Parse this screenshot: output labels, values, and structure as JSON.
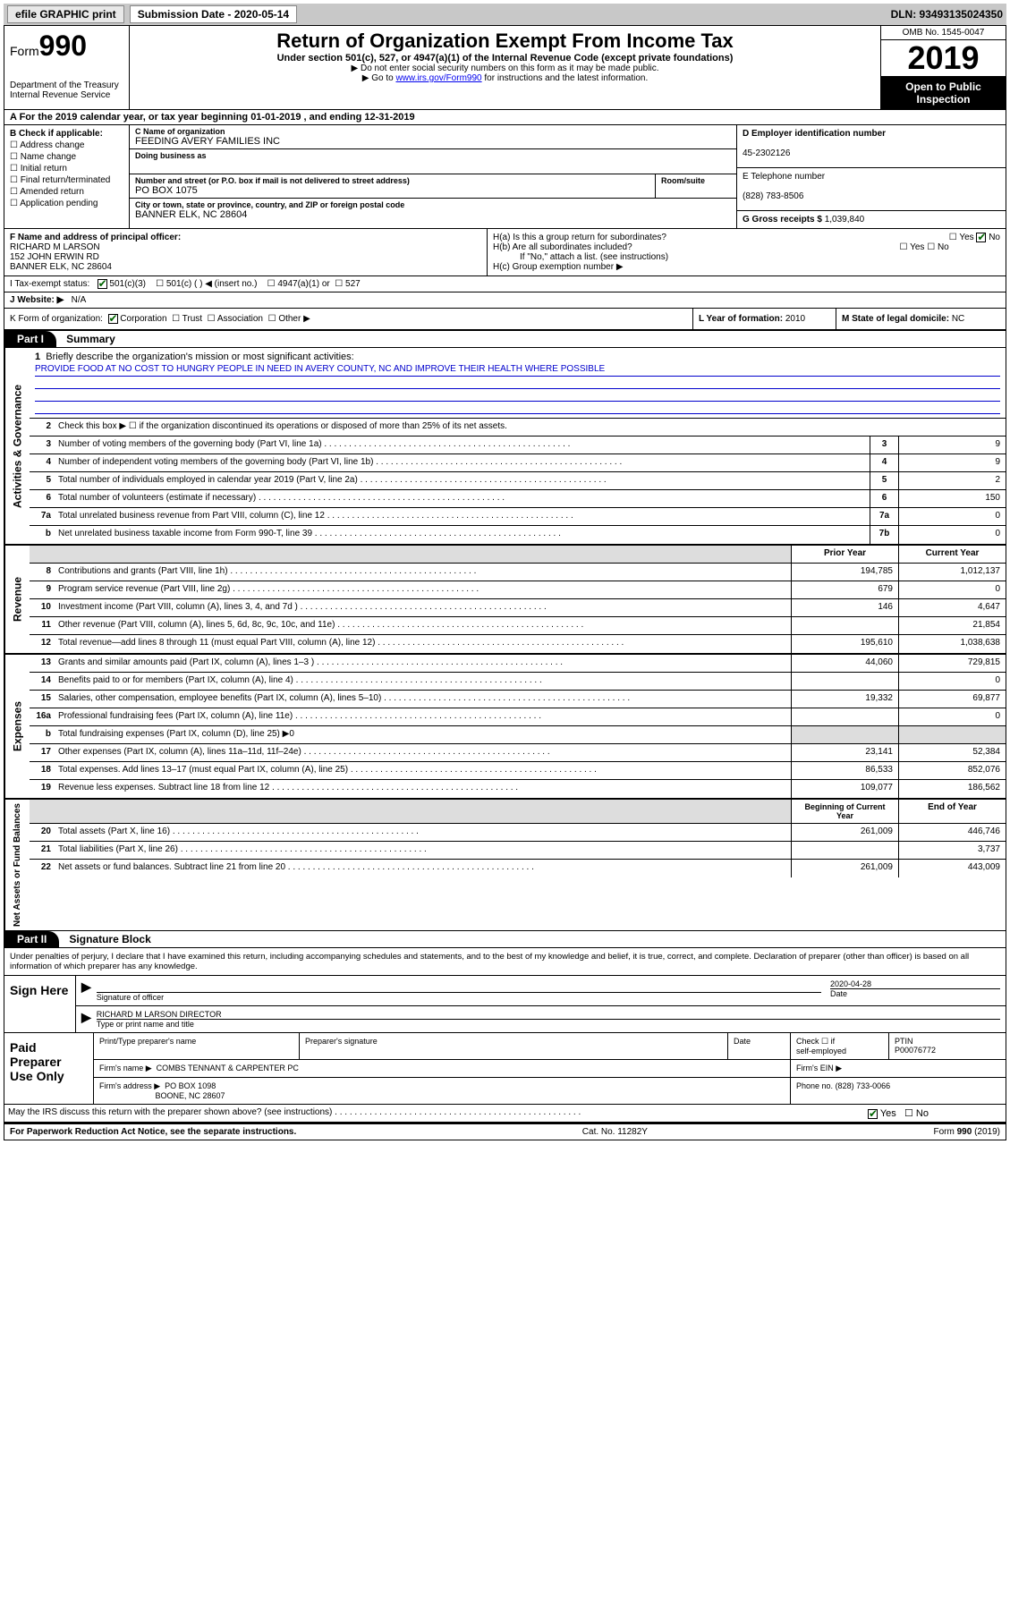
{
  "toolbar": {
    "btn1": "efile GRAPHIC print",
    "sub_label": "Submission Date - 2020-05-14",
    "dln": "DLN: 93493135024350"
  },
  "header": {
    "form_word": "Form",
    "form_num": "990",
    "dept1": "Department of the Treasury",
    "dept2": "Internal Revenue Service",
    "title": "Return of Organization Exempt From Income Tax",
    "sub1": "Under section 501(c), 527, or 4947(a)(1) of the Internal Revenue Code (except private foundations)",
    "sub2": "▶ Do not enter social security numbers on this form as it may be made public.",
    "sub3_pre": "▶ Go to ",
    "sub3_link": "www.irs.gov/Form990",
    "sub3_post": " for instructions and the latest information.",
    "omb": "OMB No. 1545-0047",
    "year": "2019",
    "open1": "Open to Public",
    "open2": "Inspection"
  },
  "rowA": "A For the 2019 calendar year, or tax year beginning 01-01-2019    , and ending 12-31-2019",
  "B": {
    "hdr": "B Check if applicable:",
    "o1": "Address change",
    "o2": "Name change",
    "o3": "Initial return",
    "o4": "Final return/terminated",
    "o5": "Amended return",
    "o6": "Application pending"
  },
  "C": {
    "name_lab": "C Name of organization",
    "name": "FEEDING AVERY FAMILIES INC",
    "dba_lab": "Doing business as",
    "dba": "",
    "street_lab": "Number and street (or P.O. box if mail is not delivered to street address)",
    "street": "PO BOX 1075",
    "room_lab": "Room/suite",
    "city_lab": "City or town, state or province, country, and ZIP or foreign postal code",
    "city": "BANNER ELK, NC  28604"
  },
  "D": {
    "lab": "D Employer identification number",
    "val": "45-2302126"
  },
  "E": {
    "lab": "E Telephone number",
    "val": "(828) 783-8506"
  },
  "G": {
    "lab": "G Gross receipts $",
    "val": "1,039,840"
  },
  "F": {
    "lab": "F  Name and address of principal officer:",
    "v1": "RICHARD M LARSON",
    "v2": "152 JOHN ERWIN RD",
    "v3": "BANNER ELK, NC  28604"
  },
  "H": {
    "a": "H(a)  Is this a group return for subordinates?",
    "b": "H(b)  Are all subordinates included?",
    "b2": "If \"No,\" attach a list. (see instructions)",
    "c": "H(c)  Group exemption number ▶",
    "yes": "Yes",
    "no": "No"
  },
  "I": {
    "lab": "I   Tax-exempt status:",
    "o1": "501(c)(3)",
    "o2": "501(c) (   ) ◀ (insert no.)",
    "o3": "4947(a)(1) or",
    "o4": "527"
  },
  "J": {
    "lab": "J   Website: ▶",
    "val": "N/A"
  },
  "K": {
    "lab": "K Form of organization:",
    "o1": "Corporation",
    "o2": "Trust",
    "o3": "Association",
    "o4": "Other ▶"
  },
  "L": {
    "lab": "L Year of formation:",
    "val": "2010"
  },
  "M": {
    "lab": "M State of legal domicile:",
    "val": "NC"
  },
  "part1": {
    "hdr": "Part I",
    "title": "Summary"
  },
  "tabs": {
    "ag": "Activities & Governance",
    "rev": "Revenue",
    "exp": "Expenses",
    "na": "Net Assets or Fund Balances"
  },
  "q1": {
    "lab": "Briefly describe the organization's mission or most significant activities:",
    "mission": "PROVIDE FOOD AT NO COST TO HUNGRY PEOPLE IN NEED IN AVERY COUNTY, NC AND IMPROVE THEIR HEALTH WHERE POSSIBLE"
  },
  "q2": "Check this box ▶ ☐  if the organization discontinued its operations or disposed of more than 25% of its net assets.",
  "lines_small": [
    {
      "n": "3",
      "t": "Number of voting members of the governing body (Part VI, line 1a)",
      "cn": "3",
      "v": "9"
    },
    {
      "n": "4",
      "t": "Number of independent voting members of the governing body (Part VI, line 1b)",
      "cn": "4",
      "v": "9"
    },
    {
      "n": "5",
      "t": "Total number of individuals employed in calendar year 2019 (Part V, line 2a)",
      "cn": "5",
      "v": "2"
    },
    {
      "n": "6",
      "t": "Total number of volunteers (estimate if necessary)",
      "cn": "6",
      "v": "150"
    },
    {
      "n": "7a",
      "t": "Total unrelated business revenue from Part VIII, column (C), line 12",
      "cn": "7a",
      "v": "0"
    },
    {
      "n": "b",
      "t": "Net unrelated business taxable income from Form 990-T, line 39",
      "cn": "7b",
      "v": "0"
    }
  ],
  "col_hdrs": {
    "prior": "Prior Year",
    "current": "Current Year",
    "beg": "Beginning of Current Year",
    "end": "End of Year"
  },
  "rev_lines": [
    {
      "n": "8",
      "t": "Contributions and grants (Part VIII, line 1h)",
      "p": "194,785",
      "c": "1,012,137"
    },
    {
      "n": "9",
      "t": "Program service revenue (Part VIII, line 2g)",
      "p": "679",
      "c": "0"
    },
    {
      "n": "10",
      "t": "Investment income (Part VIII, column (A), lines 3, 4, and 7d )",
      "p": "146",
      "c": "4,647"
    },
    {
      "n": "11",
      "t": "Other revenue (Part VIII, column (A), lines 5, 6d, 8c, 9c, 10c, and 11e)",
      "p": "",
      "c": "21,854"
    },
    {
      "n": "12",
      "t": "Total revenue—add lines 8 through 11 (must equal Part VIII, column (A), line 12)",
      "p": "195,610",
      "c": "1,038,638"
    }
  ],
  "exp_lines": [
    {
      "n": "13",
      "t": "Grants and similar amounts paid (Part IX, column (A), lines 1–3 )",
      "p": "44,060",
      "c": "729,815"
    },
    {
      "n": "14",
      "t": "Benefits paid to or for members (Part IX, column (A), line 4)",
      "p": "",
      "c": "0"
    },
    {
      "n": "15",
      "t": "Salaries, other compensation, employee benefits (Part IX, column (A), lines 5–10)",
      "p": "19,332",
      "c": "69,877"
    },
    {
      "n": "16a",
      "t": "Professional fundraising fees (Part IX, column (A), line 11e)",
      "p": "",
      "c": "0"
    },
    {
      "n": "b",
      "t": "Total fundraising expenses (Part IX, column (D), line 25) ▶0",
      "p": null,
      "c": null,
      "shade": true
    },
    {
      "n": "17",
      "t": "Other expenses (Part IX, column (A), lines 11a–11d, 11f–24e)",
      "p": "23,141",
      "c": "52,384"
    },
    {
      "n": "18",
      "t": "Total expenses. Add lines 13–17 (must equal Part IX, column (A), line 25)",
      "p": "86,533",
      "c": "852,076"
    },
    {
      "n": "19",
      "t": "Revenue less expenses. Subtract line 18 from line 12",
      "p": "109,077",
      "c": "186,562"
    }
  ],
  "na_lines": [
    {
      "n": "20",
      "t": "Total assets (Part X, line 16)",
      "p": "261,009",
      "c": "446,746"
    },
    {
      "n": "21",
      "t": "Total liabilities (Part X, line 26)",
      "p": "",
      "c": "3,737"
    },
    {
      "n": "22",
      "t": "Net assets or fund balances. Subtract line 21 from line 20",
      "p": "261,009",
      "c": "443,009"
    }
  ],
  "part2": {
    "hdr": "Part II",
    "title": "Signature Block"
  },
  "perjury": "Under penalties of perjury, I declare that I have examined this return, including accompanying schedules and statements, and to the best of my knowledge and belief, it is true, correct, and complete. Declaration of preparer (other than officer) is based on all information of which preparer has any knowledge.",
  "sign": {
    "here": "Sign Here",
    "sig_lab": "Signature of officer",
    "date": "2020-04-28",
    "date_lab": "Date",
    "name": "RICHARD M LARSON  DIRECTOR",
    "name_lab": "Type or print name and title"
  },
  "paid": {
    "hdr1": "Paid",
    "hdr2": "Preparer",
    "hdr3": "Use Only",
    "c1": "Print/Type preparer's name",
    "c2": "Preparer's signature",
    "c3": "Date",
    "c4a": "Check ☐ if",
    "c4b": "self-employed",
    "c5": "PTIN",
    "ptin": "P00076772",
    "firm_lab": "Firm's name      ▶",
    "firm": "COMBS TENNANT & CARPENTER PC",
    "ein_lab": "Firm's EIN ▶",
    "addr_lab": "Firm's address ▶",
    "addr1": "PO BOX 1098",
    "addr2": "BOONE, NC  28607",
    "phone_lab": "Phone no.",
    "phone": "(828) 733-0066"
  },
  "discuss": {
    "q": "May the IRS discuss this return with the preparer shown above? (see instructions)",
    "yes": "Yes",
    "no": "No"
  },
  "footer": {
    "l": "For Paperwork Reduction Act Notice, see the separate instructions.",
    "m": "Cat. No. 11282Y",
    "r": "Form 990 (2019)"
  }
}
